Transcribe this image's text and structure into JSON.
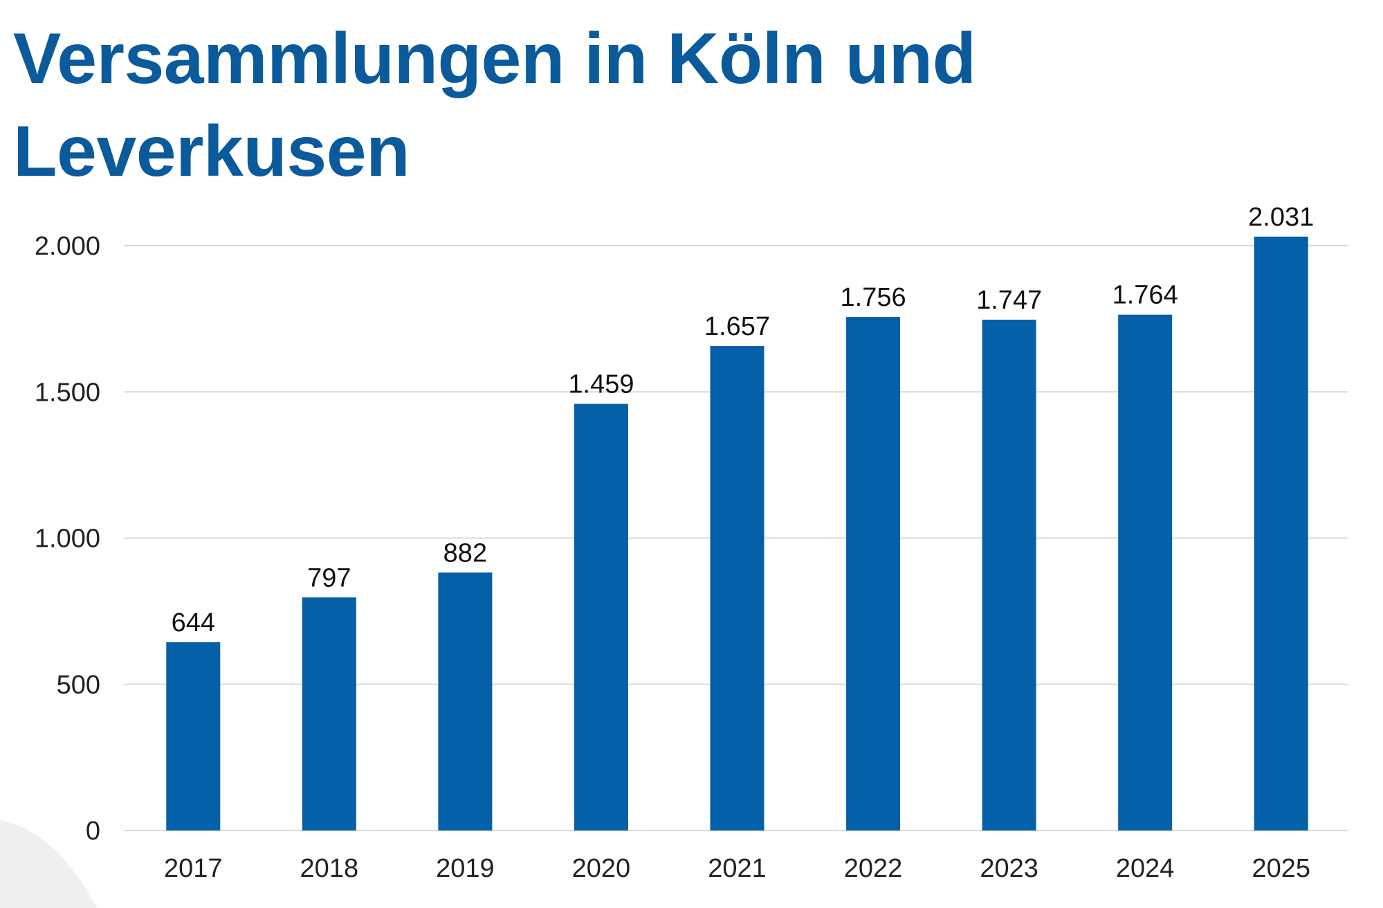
{
  "chart_data": {
    "type": "bar",
    "title": "Versammlungen in Köln und Leverkusen",
    "xlabel": "",
    "ylabel": "",
    "categories": [
      "2017",
      "2018",
      "2019",
      "2020",
      "2021",
      "2022",
      "2023",
      "2024",
      "2025"
    ],
    "values": [
      644,
      797,
      882,
      1459,
      1657,
      1756,
      1747,
      1764,
      2031
    ],
    "data_labels": [
      "644",
      "797",
      "882",
      "1.459",
      "1.657",
      "1.756",
      "1.747",
      "1.764",
      "2.031"
    ],
    "ylim": [
      0,
      2000
    ],
    "yticks": [
      0,
      500,
      1000,
      1500,
      2000
    ],
    "ytick_labels": [
      "0",
      "500",
      "1.000",
      "1.500",
      "2.000"
    ],
    "grid": true,
    "legend": "none",
    "colors": {
      "bar": "#0560a8",
      "title": "#0a5a9c",
      "grid": "#d9d9d9"
    }
  }
}
